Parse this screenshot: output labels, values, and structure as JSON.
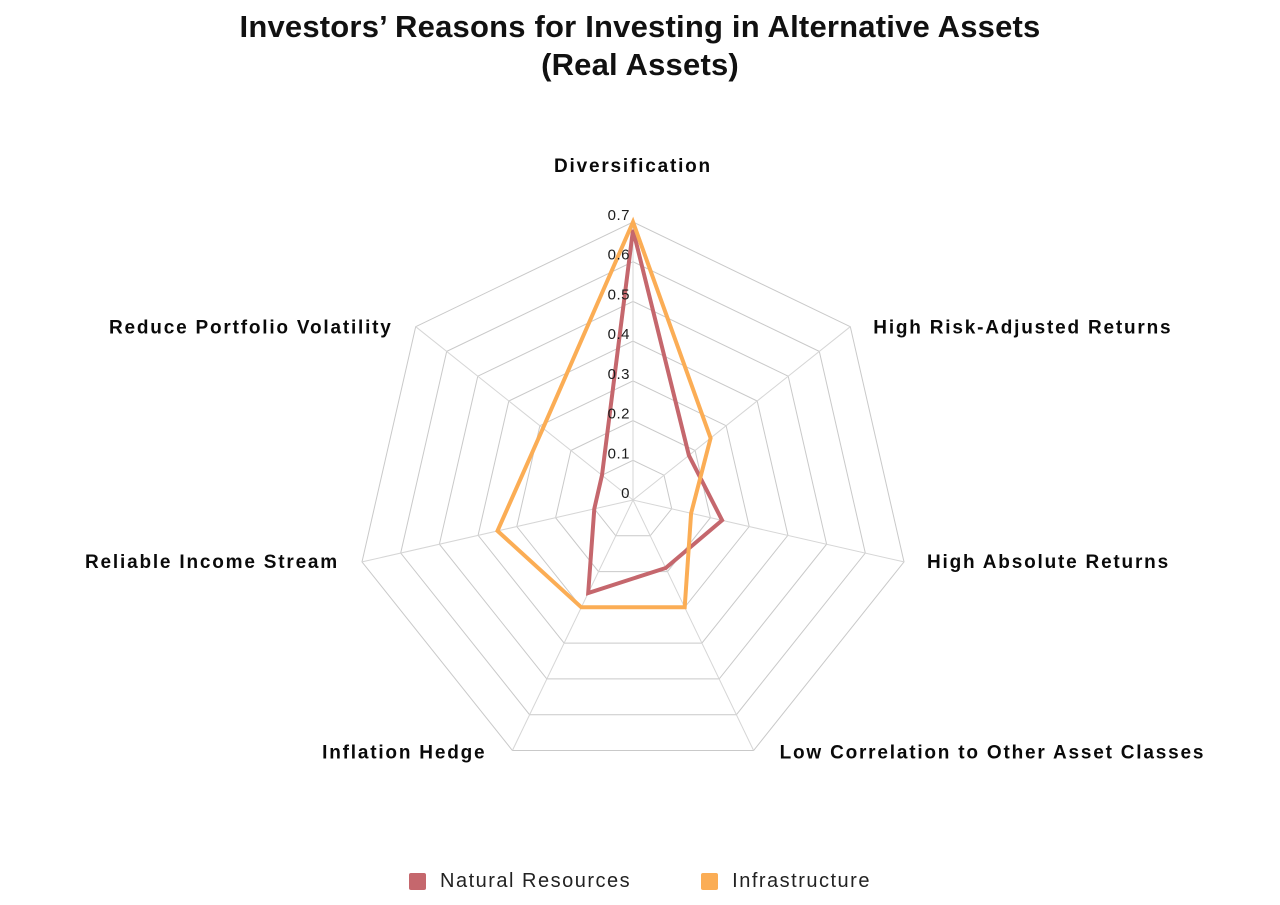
{
  "title": {
    "line1": "Investors’ Reasons for Investing in Alternative Assets",
    "line2": "(Real Assets)"
  },
  "chart_data": {
    "type": "radar",
    "title": "Investors’ Reasons for Investing in Alternative Assets (Real Assets)",
    "categories": [
      "Diversification",
      "High Risk-Adjusted Returns",
      "High Absolute Returns",
      "Low Correlation to Other Asset Classes",
      "Inflation Hedge",
      "Reliable Income Stream",
      "Reduce Portfolio Volatility"
    ],
    "series": [
      {
        "name": "Natural Resources",
        "color": "#C5676D",
        "values": [
          0.68,
          0.18,
          0.23,
          0.19,
          0.26,
          0.1,
          0.1
        ]
      },
      {
        "name": "Infrastructure",
        "color": "#FBAD55",
        "values": [
          0.7,
          0.25,
          0.15,
          0.3,
          0.3,
          0.35,
          0.29
        ]
      }
    ],
    "radial_ticks": [
      0,
      0.1,
      0.2,
      0.3,
      0.4,
      0.5,
      0.6,
      0.7
    ],
    "rlim": [
      0,
      0.7
    ],
    "start_axis": "top",
    "angular_direction": "clockwise",
    "grid": true,
    "grid_color": "#c9c9c9",
    "legend_position": "bottom"
  },
  "legend": {
    "items": [
      {
        "label": "Natural Resources",
        "color": "#C5676D"
      },
      {
        "label": "Infrastructure",
        "color": "#FBAD55"
      }
    ]
  }
}
